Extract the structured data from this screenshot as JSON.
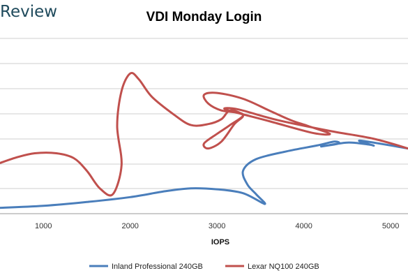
{
  "brand": "Review",
  "chart_data": {
    "type": "scatter",
    "title": "VDI Monday Login",
    "xlabel": "IOPS",
    "ylabel": "",
    "xlim": [
      500,
      5200
    ],
    "ylim": [
      0,
      9
    ],
    "x_ticks": [
      1000,
      2000,
      3000,
      4000,
      5000
    ],
    "grid": "horizontal",
    "legend_position": "bottom",
    "series": [
      {
        "name": "Inland Professional 240GB",
        "color": "#4a7ebb",
        "points": [
          [
            500,
            0.3
          ],
          [
            1000,
            0.4
          ],
          [
            1500,
            0.6
          ],
          [
            2000,
            0.85
          ],
          [
            2400,
            1.15
          ],
          [
            2700,
            1.3
          ],
          [
            3000,
            1.25
          ],
          [
            3300,
            1.05
          ],
          [
            3550,
            0.5
          ],
          [
            3450,
            1.0
          ],
          [
            3350,
            1.5
          ],
          [
            3300,
            2.2
          ],
          [
            3450,
            2.8
          ],
          [
            3800,
            3.2
          ],
          [
            4150,
            3.5
          ],
          [
            4350,
            3.7
          ],
          [
            4400,
            3.6
          ],
          [
            4200,
            3.45
          ],
          [
            4500,
            3.65
          ],
          [
            4750,
            3.55
          ],
          [
            4800,
            3.5
          ],
          [
            4650,
            3.75
          ],
          [
            5200,
            3.35
          ]
        ]
      },
      {
        "name": "Lexar NQ100 240GB",
        "color": "#c0504d",
        "points": [
          [
            500,
            2.6
          ],
          [
            700,
            2.9
          ],
          [
            900,
            3.1
          ],
          [
            1150,
            3.1
          ],
          [
            1350,
            2.85
          ],
          [
            1500,
            2.2
          ],
          [
            1650,
            1.3
          ],
          [
            1800,
            1.0
          ],
          [
            1900,
            2.5
          ],
          [
            1850,
            4.5
          ],
          [
            1900,
            6.3
          ],
          [
            2000,
            7.2
          ],
          [
            2100,
            6.9
          ],
          [
            2250,
            6.0
          ],
          [
            2500,
            5.1
          ],
          [
            2700,
            4.55
          ],
          [
            2900,
            4.6
          ],
          [
            3050,
            4.85
          ],
          [
            3150,
            5.3
          ],
          [
            3300,
            5.05
          ],
          [
            3200,
            4.6
          ],
          [
            3050,
            3.7
          ],
          [
            2900,
            3.35
          ],
          [
            2850,
            3.6
          ],
          [
            3000,
            4.1
          ],
          [
            3150,
            4.55
          ],
          [
            3300,
            5.1
          ],
          [
            3050,
            5.3
          ],
          [
            2900,
            5.65
          ],
          [
            2850,
            6.1
          ],
          [
            3000,
            6.2
          ],
          [
            3300,
            5.9
          ],
          [
            3600,
            5.3
          ],
          [
            3850,
            4.8
          ],
          [
            4050,
            4.5
          ],
          [
            4300,
            4.1
          ],
          [
            4100,
            4.15
          ],
          [
            3600,
            4.75
          ],
          [
            3100,
            5.35
          ],
          [
            3250,
            5.35
          ],
          [
            3700,
            4.8
          ],
          [
            4300,
            4.25
          ],
          [
            4800,
            3.85
          ],
          [
            5200,
            3.35
          ]
        ]
      }
    ]
  }
}
